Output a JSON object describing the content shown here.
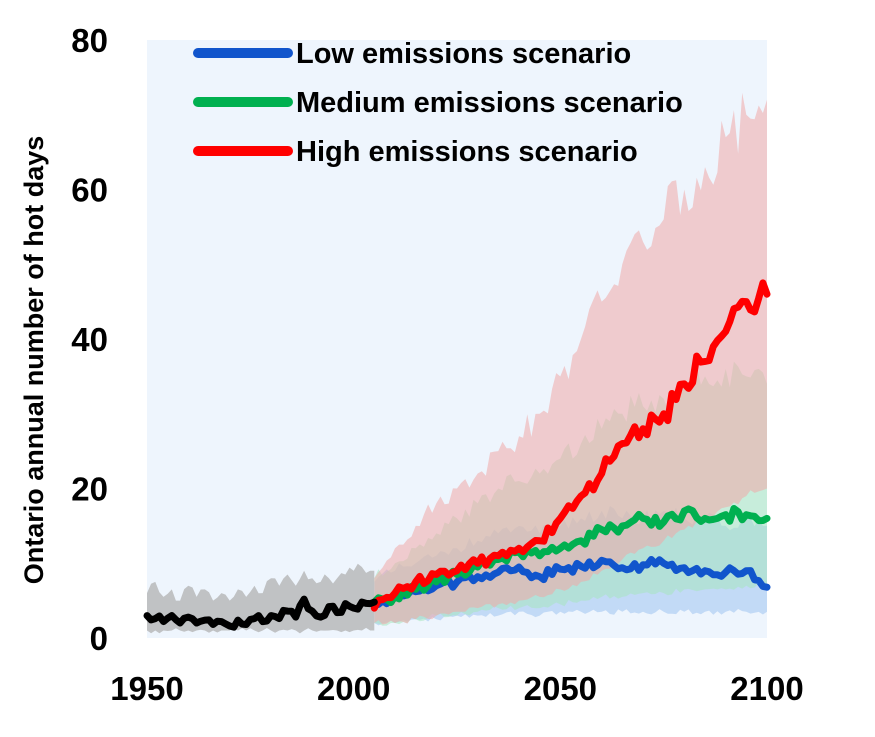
{
  "chart_data": {
    "type": "line",
    "title": "",
    "xlabel": "",
    "ylabel": "Ontario annual number of hot days",
    "xlim": [
      1950,
      2100
    ],
    "ylim": [
      0,
      80
    ],
    "xticks": [
      1950,
      2000,
      2050,
      2100
    ],
    "yticks": [
      0,
      20,
      40,
      60,
      80
    ],
    "grid": false,
    "legend_position": "top",
    "plot_background": "#eef5fd",
    "historical": {
      "color": "#000000",
      "band_color": "#b0b0b0",
      "x": [
        1950,
        1952,
        1954,
        1956,
        1958,
        1960,
        1962,
        1964,
        1966,
        1968,
        1970,
        1972,
        1974,
        1976,
        1978,
        1980,
        1982,
        1984,
        1986,
        1988,
        1990,
        1992,
        1994,
        1996,
        1998,
        2000,
        2002,
        2004,
        2005
      ],
      "values": [
        3,
        2.6,
        2.2,
        3,
        2,
        2.8,
        2,
        2.4,
        1.8,
        2.2,
        1.6,
        2.4,
        1.8,
        2.6,
        2.2,
        3,
        2.6,
        3.6,
        2.8,
        5.2,
        3.6,
        2.8,
        4.2,
        3.4,
        4.6,
        4,
        4.8,
        4.6,
        4.8
      ],
      "lower": [
        1,
        1,
        1,
        1,
        1,
        1,
        1,
        1,
        1,
        1,
        1,
        1,
        1,
        1,
        1,
        1,
        1,
        1,
        1,
        1,
        1,
        1,
        1,
        1,
        1,
        1,
        1,
        1,
        1
      ],
      "upper": [
        6,
        7.5,
        5.5,
        6.5,
        5,
        7,
        5.5,
        6.5,
        5,
        6,
        5,
        6.5,
        5.5,
        7,
        6,
        8,
        7,
        8.5,
        7,
        9,
        8,
        7.5,
        8,
        8,
        8.5,
        9,
        9.5,
        9,
        9
      ]
    },
    "series": [
      {
        "name": "Low emissions scenario",
        "color": "#1155cc",
        "band_color": "#9ec2f0",
        "x": [
          2005,
          2010,
          2015,
          2020,
          2025,
          2030,
          2035,
          2040,
          2045,
          2050,
          2055,
          2060,
          2065,
          2070,
          2075,
          2080,
          2085,
          2090,
          2095,
          2100
        ],
        "values": [
          4.8,
          5.5,
          6.2,
          7,
          7.5,
          8.2,
          8.8,
          9.5,
          8.2,
          9.2,
          9.6,
          10.4,
          9.4,
          9.8,
          10,
          9.4,
          9,
          8.8,
          9,
          6.8
        ],
        "lower": [
          2,
          2,
          2.5,
          2.5,
          3,
          3,
          3,
          3.5,
          3,
          3.5,
          3.5,
          3.5,
          3.5,
          3.5,
          3.5,
          3.5,
          3.5,
          3.5,
          3.5,
          3.5
        ],
        "upper": [
          7.5,
          9,
          10,
          11,
          12,
          13,
          14,
          15,
          14,
          15,
          16,
          17,
          16,
          16,
          17,
          16,
          16,
          15,
          16,
          15
        ]
      },
      {
        "name": "Medium emissions scenario",
        "color": "#00b050",
        "band_color": "#a8e6c0",
        "x": [
          2005,
          2010,
          2015,
          2020,
          2025,
          2030,
          2035,
          2040,
          2045,
          2050,
          2055,
          2060,
          2065,
          2070,
          2075,
          2080,
          2085,
          2090,
          2095,
          2100
        ],
        "values": [
          4.8,
          5.6,
          6.5,
          7.5,
          8.5,
          9.5,
          10.5,
          11.5,
          11,
          12,
          13,
          14.5,
          15,
          16,
          15.5,
          17,
          16,
          16.5,
          16.5,
          16
        ],
        "lower": [
          2,
          2,
          2.5,
          3,
          3,
          3.5,
          4,
          4,
          4,
          4.5,
          5,
          5.5,
          5.5,
          6,
          6,
          6.5,
          6.5,
          6.5,
          7,
          7
        ],
        "upper": [
          8,
          10,
          12,
          14,
          16,
          18,
          20,
          21,
          22,
          24,
          26,
          28,
          30,
          31,
          32,
          34,
          35,
          36,
          35,
          34
        ]
      },
      {
        "name": "High emissions scenario",
        "color": "#ff0000",
        "band_color": "#f0a8a8",
        "x": [
          2005,
          2010,
          2015,
          2020,
          2025,
          2030,
          2035,
          2040,
          2045,
          2050,
          2055,
          2060,
          2065,
          2070,
          2075,
          2080,
          2085,
          2090,
          2095,
          2100
        ],
        "values": [
          4,
          6,
          7.5,
          8.5,
          9,
          10,
          11,
          12,
          13,
          16,
          19,
          22,
          26,
          28,
          30,
          34,
          37,
          41,
          45,
          46
        ],
        "lower": [
          2,
          2,
          2.5,
          3,
          3.5,
          4,
          4.5,
          5,
          5.5,
          6.5,
          7.5,
          9,
          10.5,
          12,
          13,
          14.5,
          16,
          17.5,
          19,
          20
        ],
        "upper": [
          8,
          12,
          15,
          18,
          20,
          22,
          25,
          27,
          30,
          35,
          40,
          45,
          50,
          53,
          56,
          60,
          63,
          67,
          70,
          72
        ]
      }
    ]
  }
}
